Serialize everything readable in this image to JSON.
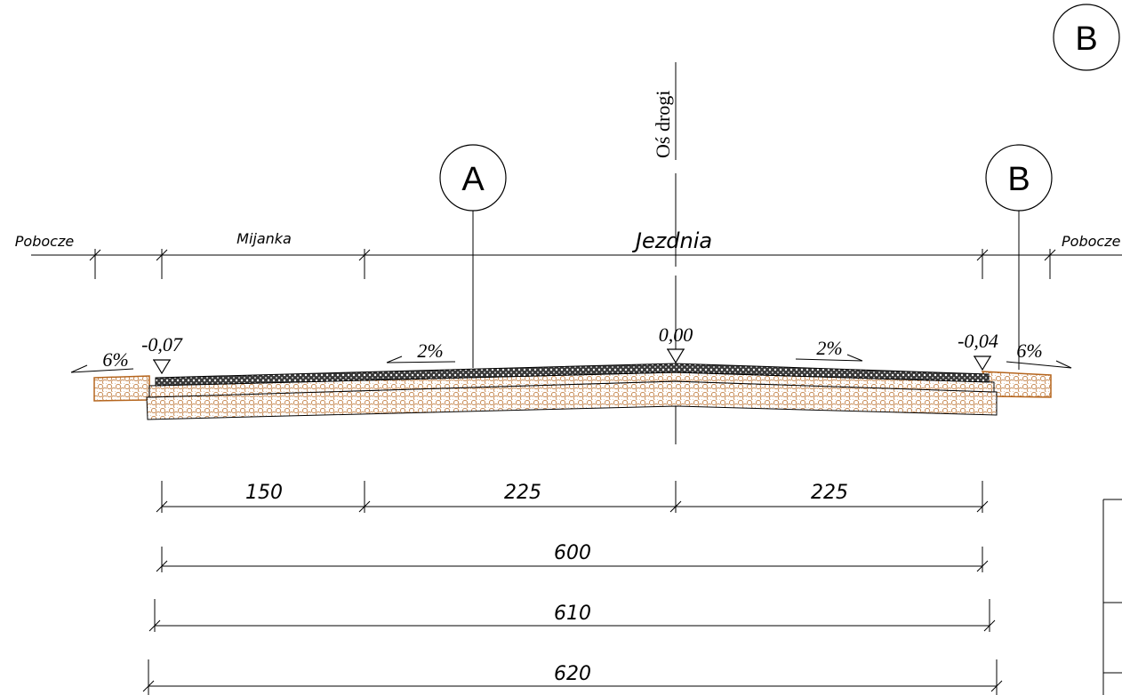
{
  "axis_label": "Oś drogi",
  "bubbles": {
    "corner": "B",
    "a": "A",
    "b": "B"
  },
  "zones": {
    "left_shoulder": "Pobocze",
    "passing_place": "Mijanka",
    "carriageway": "Jezdnia",
    "right_shoulder": "Pobocze"
  },
  "levels": {
    "left": "-0,07",
    "center": "0,00",
    "right": "-0,04"
  },
  "slopes": {
    "left_shoulder": "6%",
    "left_lane": "2%",
    "right_lane": "2%",
    "right_shoulder": "6%"
  },
  "dimensions": {
    "passing_place": "150",
    "left_half": "225",
    "right_half": "225",
    "total_600": "600",
    "total_610": "610",
    "total_620": "620"
  },
  "colors": {
    "line": "#000000",
    "aggregate": "#b5651d",
    "asphalt": "#2a2a2a"
  }
}
